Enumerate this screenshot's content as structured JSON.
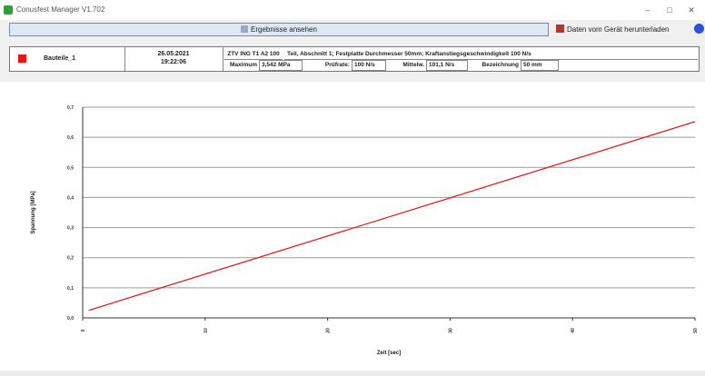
{
  "window": {
    "title": "Conusfest Manager V1.702"
  },
  "toolbar": {
    "results_label": "Ergebnisse ansehen",
    "download_label": "Daten vom Gerät herunterladen"
  },
  "sample": {
    "color": "#ee1111",
    "name": "Bauteile_1",
    "date": "26.05.2021",
    "time": "19:22:06",
    "standard": "ZTV ING T1 A2 100",
    "description": "Teil, Abschnitt 1; Festplatte Durchmesser 50mm; Kraftanstiegsgeschwindigkeit 100 N/s",
    "max_label": "Maximum",
    "max_value": "3,542 MPa",
    "rate_label": "Prüfrate:",
    "rate_value": "100 N/s",
    "avg_label": "Mittelw.",
    "avg_value": "101,1 N/s",
    "dia_label": "Bezeichnung",
    "dia_value": "50 mm"
  },
  "chart_data": {
    "type": "line",
    "xlabel": "Zeit [sec]",
    "ylabel": "Spannung [MPa]",
    "xlim": [
      0,
      50
    ],
    "ylim": [
      0.0,
      0.7
    ],
    "x_ticks": [
      "0",
      "10",
      "20",
      "30",
      "40",
      "50"
    ],
    "y_ticks": [
      "0,0",
      "0,1",
      "0,2",
      "0,3",
      "0,4",
      "0,5",
      "0,6",
      "0,7"
    ],
    "grid": "horizontal",
    "series": [
      {
        "color": "#e02020",
        "x": [
          0.5,
          50
        ],
        "y": [
          0.025,
          0.652
        ]
      }
    ]
  }
}
